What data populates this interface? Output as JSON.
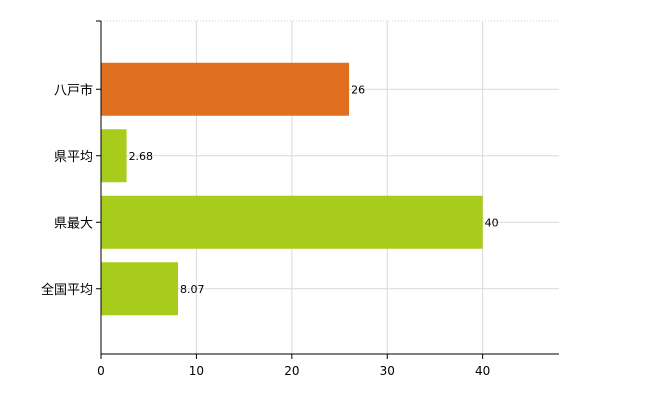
{
  "chart_data": {
    "type": "bar",
    "orientation": "horizontal",
    "categories": [
      "八戸市",
      "県平均",
      "県最大",
      "全国平均"
    ],
    "values": [
      26,
      2.68,
      40,
      8.07
    ],
    "value_labels": [
      "26",
      "2.68",
      "40",
      "8.07"
    ],
    "bar_colors": [
      "#e07020",
      "#a8cc1c",
      "#a8cc1c",
      "#a8cc1c"
    ],
    "xlim": [
      0,
      48
    ],
    "xticks": [
      0,
      10,
      20,
      30,
      40
    ],
    "xtick_labels": [
      "0",
      "10",
      "20",
      "30",
      "40"
    ],
    "grid": true,
    "legend": "none",
    "title": "",
    "xlabel": "",
    "ylabel": ""
  }
}
